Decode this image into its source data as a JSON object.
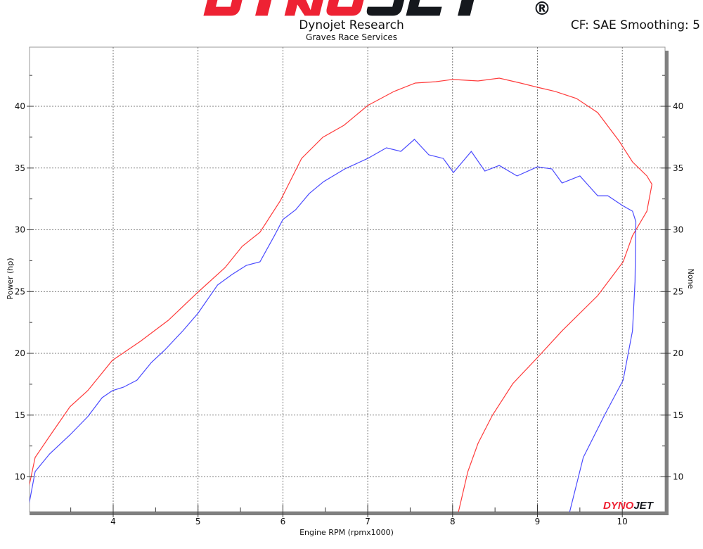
{
  "header": {
    "logo_text": "DYNOJET",
    "logo_registered": "®",
    "title": "Dynojet Research",
    "subtitle": "Graves Race Services",
    "settings": "CF: SAE Smoothing: 5"
  },
  "watermark_logo": "DYNOJET",
  "colors": {
    "red_series": "#ff3b3b",
    "blue_series": "#4a4aff",
    "frame": "#808080",
    "logo_red": "#ee2233",
    "logo_black": "#15181d"
  },
  "chart_data": {
    "type": "line",
    "title": "Dynojet Research",
    "subtitle": "Graves Race Services",
    "xlabel": "Engine RPM (rpmx1000)",
    "ylabel": "Power (hp)",
    "y2label": "None",
    "xlim": [
      3.0,
      10.5
    ],
    "ylim": [
      7.1,
      44.8
    ],
    "xticks": [
      4,
      5,
      6,
      7,
      8,
      9,
      10
    ],
    "yticks": [
      10,
      15,
      20,
      25,
      30,
      35,
      40
    ],
    "grid": true,
    "series": [
      {
        "color": "#ff3b3b",
        "points": [
          [
            3.01,
            9.29
          ],
          [
            3.08,
            11.57
          ],
          [
            3.25,
            13.28
          ],
          [
            3.49,
            15.67
          ],
          [
            3.7,
            16.98
          ],
          [
            3.99,
            19.43
          ],
          [
            4.32,
            20.97
          ],
          [
            4.65,
            22.68
          ],
          [
            5.0,
            24.96
          ],
          [
            5.32,
            26.95
          ],
          [
            5.52,
            28.66
          ],
          [
            5.73,
            29.8
          ],
          [
            5.97,
            32.36
          ],
          [
            6.22,
            35.78
          ],
          [
            6.47,
            37.49
          ],
          [
            6.72,
            38.46
          ],
          [
            7.0,
            40.06
          ],
          [
            7.31,
            41.2
          ],
          [
            7.56,
            41.88
          ],
          [
            7.8,
            41.99
          ],
          [
            8.0,
            42.17
          ],
          [
            8.3,
            42.05
          ],
          [
            8.55,
            42.28
          ],
          [
            8.8,
            41.88
          ],
          [
            9.0,
            41.54
          ],
          [
            9.21,
            41.2
          ],
          [
            9.46,
            40.63
          ],
          [
            9.71,
            39.49
          ],
          [
            9.96,
            37.21
          ],
          [
            10.12,
            35.5
          ],
          [
            10.29,
            34.36
          ],
          [
            10.35,
            33.68
          ],
          [
            10.29,
            31.51
          ],
          [
            10.12,
            29.52
          ],
          [
            10.01,
            27.41
          ],
          [
            9.71,
            24.67
          ],
          [
            9.29,
            21.82
          ],
          [
            9.0,
            19.66
          ],
          [
            8.71,
            17.55
          ],
          [
            8.47,
            14.99
          ],
          [
            8.3,
            12.71
          ],
          [
            8.18,
            10.43
          ],
          [
            8.07,
            7.18
          ]
        ]
      },
      {
        "color": "#4a4aff",
        "points": [
          [
            3.01,
            7.86
          ],
          [
            3.08,
            10.43
          ],
          [
            3.25,
            11.85
          ],
          [
            3.49,
            13.39
          ],
          [
            3.7,
            14.87
          ],
          [
            3.87,
            16.41
          ],
          [
            3.99,
            16.98
          ],
          [
            4.12,
            17.26
          ],
          [
            4.28,
            17.83
          ],
          [
            4.45,
            19.26
          ],
          [
            4.61,
            20.28
          ],
          [
            4.82,
            21.82
          ],
          [
            5.0,
            23.25
          ],
          [
            5.23,
            25.53
          ],
          [
            5.4,
            26.38
          ],
          [
            5.57,
            27.12
          ],
          [
            5.73,
            27.41
          ],
          [
            5.9,
            29.52
          ],
          [
            6.0,
            30.83
          ],
          [
            6.15,
            31.62
          ],
          [
            6.31,
            32.93
          ],
          [
            6.48,
            33.9
          ],
          [
            6.73,
            34.93
          ],
          [
            7.0,
            35.78
          ],
          [
            7.22,
            36.64
          ],
          [
            7.39,
            36.35
          ],
          [
            7.55,
            37.32
          ],
          [
            7.72,
            36.07
          ],
          [
            7.89,
            35.78
          ],
          [
            8.01,
            34.64
          ],
          [
            8.22,
            36.35
          ],
          [
            8.38,
            34.76
          ],
          [
            8.55,
            35.21
          ],
          [
            8.76,
            34.36
          ],
          [
            9.0,
            35.1
          ],
          [
            9.17,
            34.93
          ],
          [
            9.29,
            33.79
          ],
          [
            9.5,
            34.36
          ],
          [
            9.71,
            32.76
          ],
          [
            9.83,
            32.76
          ],
          [
            10.0,
            31.97
          ],
          [
            10.12,
            31.51
          ],
          [
            10.16,
            30.66
          ],
          [
            10.15,
            25.81
          ],
          [
            10.12,
            21.82
          ],
          [
            10.01,
            17.83
          ],
          [
            9.79,
            14.99
          ],
          [
            9.54,
            11.57
          ],
          [
            9.38,
            7.18
          ]
        ]
      }
    ]
  }
}
